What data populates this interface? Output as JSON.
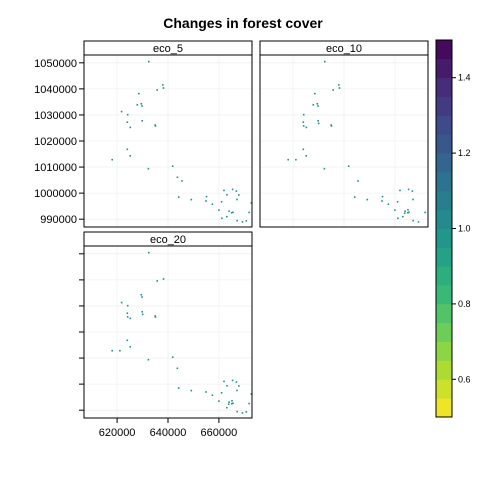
{
  "chart_data": {
    "type": "heatmap",
    "title": "Changes in forest cover",
    "xlabel": "",
    "ylabel": "",
    "xlim": [
      607000,
      673000
    ],
    "ylim": [
      987000,
      1053000
    ],
    "x_ticks": [
      620000,
      640000,
      660000
    ],
    "y_ticks": [
      990000,
      1000000,
      1010000,
      1020000,
      1030000,
      1040000,
      1050000
    ],
    "grid": true,
    "legend": {
      "type": "colorbar",
      "position": "right",
      "range": [
        0.5,
        1.5
      ],
      "ticks": [
        0.6,
        0.8,
        1.0,
        1.2,
        1.4
      ],
      "palette": "viridis",
      "colors": [
        "#fde725",
        "#b5de2b",
        "#6ece58",
        "#35b779",
        "#1f9e89",
        "#26828e",
        "#31688e",
        "#3e4989",
        "#482878",
        "#440154"
      ]
    },
    "point_color": "#21908c",
    "panels": [
      {
        "name": "eco_5",
        "value": 1.0
      },
      {
        "name": "eco_10",
        "value": 1.0
      },
      {
        "name": "eco_20",
        "value": 1.0
      }
    ]
  }
}
